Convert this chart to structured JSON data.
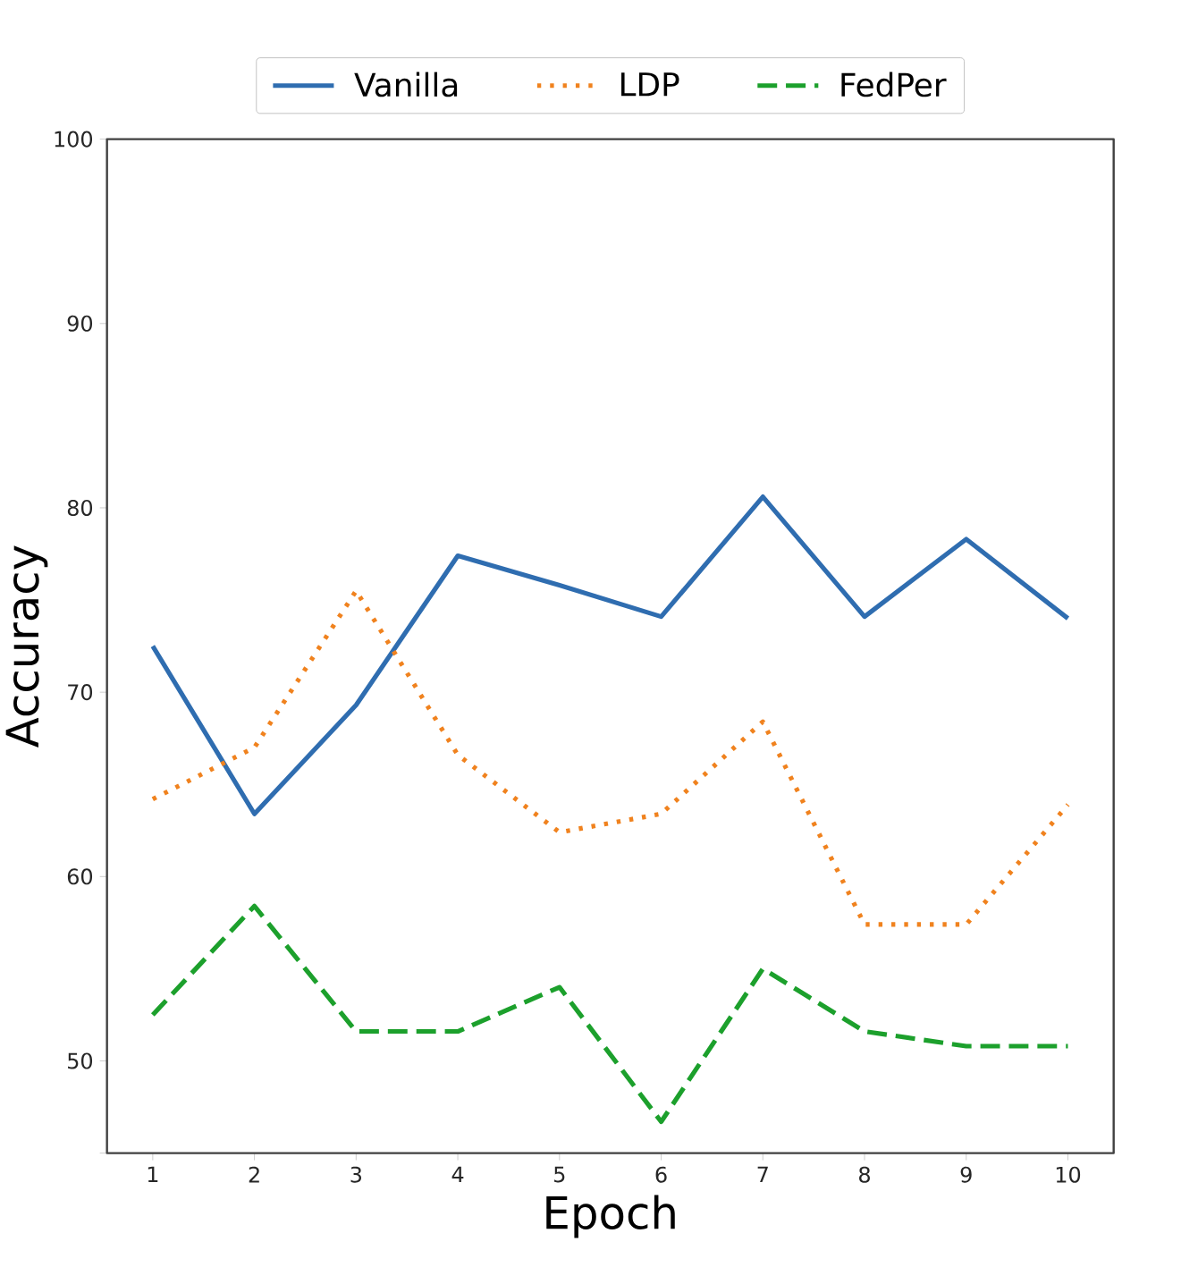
{
  "chart_data": {
    "type": "line",
    "xlabel": "Epoch",
    "ylabel": "Accuracy",
    "x": [
      1,
      2,
      3,
      4,
      5,
      6,
      7,
      8,
      9,
      10
    ],
    "series": [
      {
        "name": "Vanilla",
        "color": "#2f6db0",
        "line_style": "solid",
        "values": [
          72.5,
          63.4,
          69.3,
          77.4,
          75.8,
          74.1,
          80.6,
          74.1,
          78.3,
          74.0
        ]
      },
      {
        "name": "LDP",
        "color": "#f0821e",
        "line_style": "dotted",
        "values": [
          64.2,
          67.0,
          75.5,
          66.6,
          62.4,
          63.4,
          68.4,
          57.4,
          57.4,
          63.9
        ]
      },
      {
        "name": "FedPer",
        "color": "#1ca02c",
        "line_style": "dashed",
        "values": [
          52.5,
          58.4,
          51.6,
          51.6,
          54.0,
          46.7,
          55.0,
          51.6,
          50.8,
          50.8
        ]
      }
    ],
    "xlim": [
      0.55,
      10.45
    ],
    "ylim": [
      45,
      100
    ],
    "xticks": [
      1,
      2,
      3,
      4,
      5,
      6,
      7,
      8,
      9,
      10
    ],
    "yticks": [
      {
        "value": 45,
        "label": null
      },
      50,
      60,
      70,
      80,
      90,
      100
    ],
    "grid": false,
    "legend": "top",
    "marker": "none"
  }
}
